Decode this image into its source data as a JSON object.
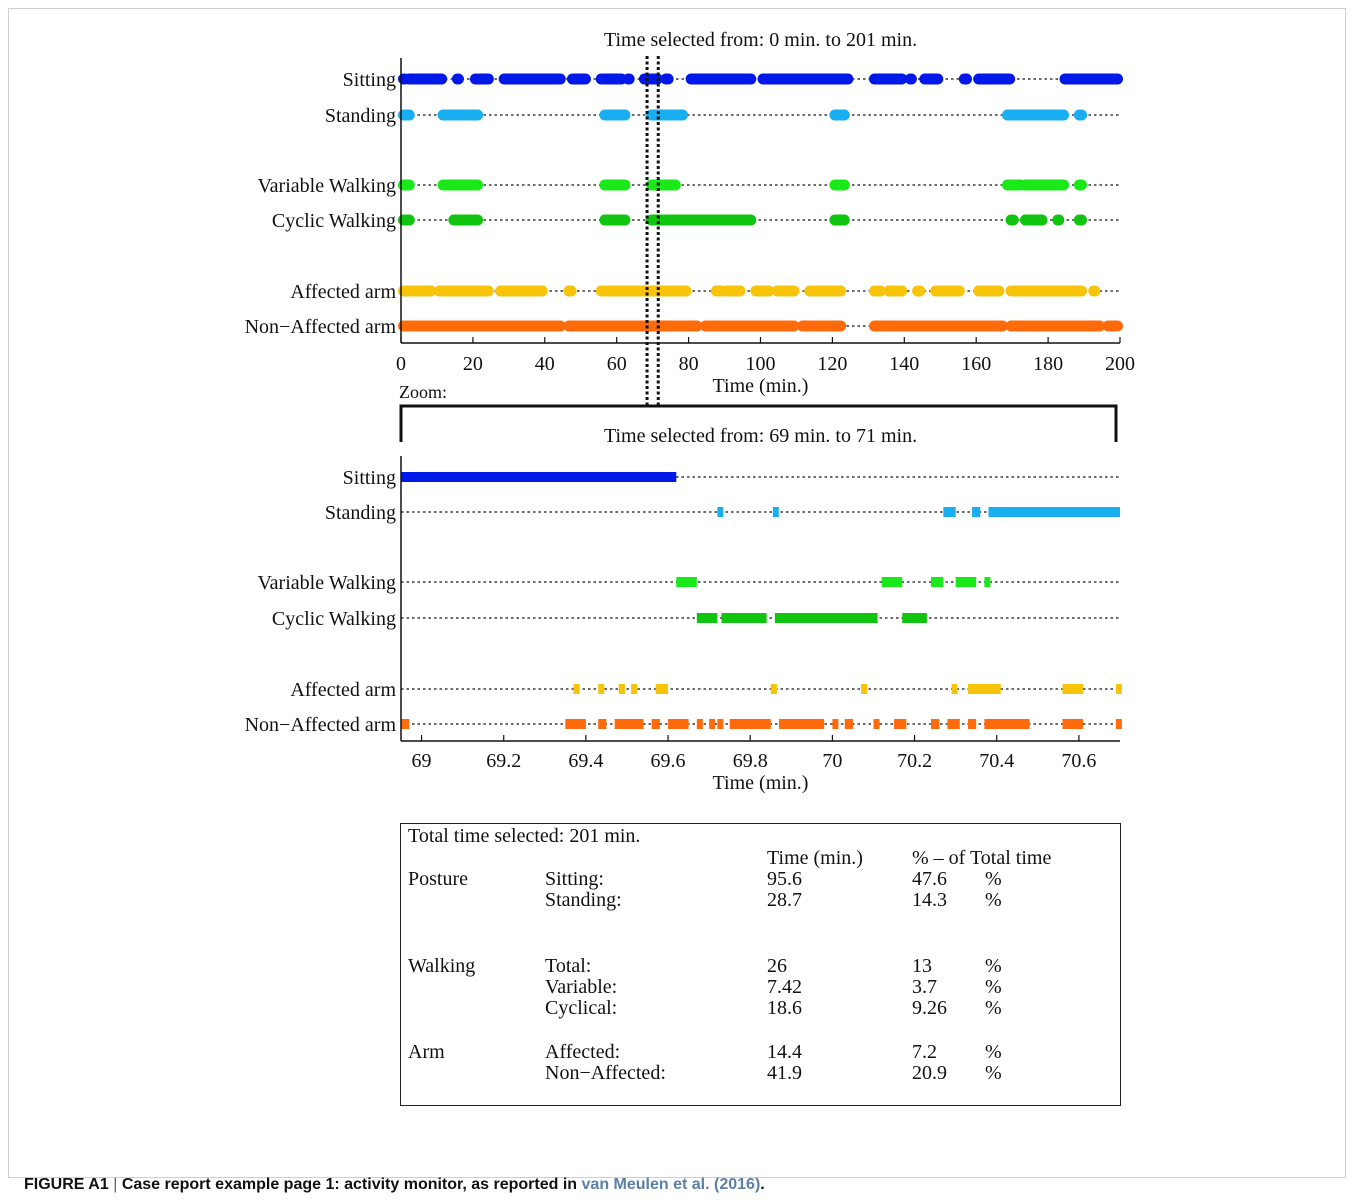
{
  "caption": {
    "label": "FIGURE A1",
    "separator": "|",
    "text": "Case report example page 1: activity monitor, as reported in",
    "reference": "van Meulen et al. (2016)",
    "end": "."
  },
  "zoom_label": "Zoom:",
  "colors": {
    "sitting": "#0018e8",
    "standing": "#19aef0",
    "variable_walking": "#19e819",
    "cyclic_walking": "#10c410",
    "affected_arm": "#f7c40a",
    "non_affected_arm": "#ff6a0a",
    "axis": "#111111"
  },
  "chart_data": [
    {
      "type": "scatter",
      "title": "Time selected from: 0 min. to 201 min.",
      "xlabel": "Time (min.)",
      "xlim": [
        0,
        200
      ],
      "xticks": [
        0,
        20,
        40,
        60,
        80,
        100,
        120,
        140,
        160,
        180,
        200
      ],
      "selection_markers": [
        69,
        71
      ],
      "series": [
        {
          "name": "Sitting",
          "color": "#0018e8",
          "segments": [
            [
              0,
              1
            ],
            [
              1.5,
              12
            ],
            [
              15,
              16
            ],
            [
              20,
              25
            ],
            [
              28,
              45
            ],
            [
              47,
              52
            ],
            [
              55,
              62
            ],
            [
              62.5,
              63
            ],
            [
              67,
              72
            ],
            [
              73,
              75
            ],
            [
              80,
              98
            ],
            [
              100,
              125
            ],
            [
              131,
              140
            ],
            [
              141,
              142
            ],
            [
              145,
              150
            ],
            [
              156,
              158
            ],
            [
              160,
              170
            ],
            [
              184,
              200
            ]
          ]
        },
        {
          "name": "Standing",
          "color": "#19aef0",
          "segments": [
            [
              0,
              3
            ],
            [
              11,
              22
            ],
            [
              56,
              63
            ],
            [
              69,
              79
            ],
            [
              120,
              124
            ],
            [
              168,
              185
            ],
            [
              188,
              190
            ]
          ]
        },
        {
          "name": "Variable Walking",
          "color": "#19e819",
          "segments": [
            [
              0,
              3
            ],
            [
              11,
              22
            ],
            [
              56,
              63
            ],
            [
              69,
              77
            ],
            [
              120,
              124
            ],
            [
              168,
              173
            ],
            [
              173,
              185
            ],
            [
              188,
              190
            ]
          ]
        },
        {
          "name": "Cyclic Walking",
          "color": "#10c410",
          "segments": [
            [
              0,
              3
            ],
            [
              14,
              22
            ],
            [
              56,
              63
            ],
            [
              69,
              98
            ],
            [
              120,
              124
            ],
            [
              169,
              171
            ],
            [
              173,
              179
            ],
            [
              182,
              183
            ],
            [
              188,
              190
            ]
          ]
        },
        {
          "name": "Affected arm",
          "color": "#f7c40a",
          "segments": [
            [
              0,
              9
            ],
            [
              10,
              25
            ],
            [
              27,
              40
            ],
            [
              46,
              48
            ],
            [
              55,
              80
            ],
            [
              87,
              90
            ],
            [
              90,
              95
            ],
            [
              98,
              103
            ],
            [
              104,
              110
            ],
            [
              113,
              123
            ],
            [
              131,
              134
            ],
            [
              135,
              140
            ],
            [
              143,
              145
            ],
            [
              148,
              156
            ],
            [
              160,
              167
            ],
            [
              169,
              190
            ],
            [
              192,
              193
            ]
          ]
        },
        {
          "name": "Non−Affected arm",
          "color": "#ff6a0a",
          "segments": [
            [
              0,
              45
            ],
            [
              46,
              83
            ],
            [
              84,
              110
            ],
            [
              111,
              123
            ],
            [
              131,
              168
            ],
            [
              169,
              195
            ],
            [
              196,
              200
            ]
          ]
        }
      ]
    },
    {
      "type": "scatter",
      "title": "Time selected from: 69 min. to 71 min.",
      "xlabel": "Time (min.)",
      "xlim": [
        68.95,
        70.7
      ],
      "xticks": [
        69,
        69.2,
        69.4,
        69.6,
        69.8,
        70,
        70.2,
        70.4,
        70.6
      ],
      "series": [
        {
          "name": "Sitting",
          "color": "#0018e8",
          "segments": [
            [
              68.95,
              69.62
            ]
          ]
        },
        {
          "name": "Standing",
          "color": "#19aef0",
          "segments": [
            [
              69.72,
              69.73
            ],
            [
              69.855,
              69.865
            ],
            [
              70.27,
              70.3
            ],
            [
              70.34,
              70.36
            ],
            [
              70.38,
              70.7
            ]
          ]
        },
        {
          "name": "Variable Walking",
          "color": "#19e819",
          "segments": [
            [
              69.62,
              69.67
            ],
            [
              70.12,
              70.17
            ],
            [
              70.24,
              70.27
            ],
            [
              70.3,
              70.35
            ],
            [
              70.37,
              70.38
            ]
          ]
        },
        {
          "name": "Cyclic Walking",
          "color": "#10c410",
          "segments": [
            [
              69.67,
              69.72
            ],
            [
              69.73,
              69.84
            ],
            [
              69.86,
              70.11
            ],
            [
              70.17,
              70.23
            ]
          ]
        },
        {
          "name": "Affected arm",
          "color": "#f7c40a",
          "segments": [
            [
              69.37,
              69.385
            ],
            [
              69.43,
              69.445
            ],
            [
              69.48,
              69.495
            ],
            [
              69.51,
              69.525
            ],
            [
              69.57,
              69.6
            ],
            [
              69.85,
              69.865
            ],
            [
              70.07,
              70.085
            ],
            [
              70.29,
              70.3
            ],
            [
              70.33,
              70.41
            ],
            [
              70.56,
              70.61
            ],
            [
              70.69,
              70.7
            ]
          ]
        },
        {
          "name": "Non−Affected arm",
          "color": "#ff6a0a",
          "segments": [
            [
              68.95,
              68.97
            ],
            [
              69.35,
              69.4
            ],
            [
              69.43,
              69.45
            ],
            [
              69.47,
              69.54
            ],
            [
              69.56,
              69.58
            ],
            [
              69.6,
              69.65
            ],
            [
              69.67,
              69.68
            ],
            [
              69.7,
              69.71
            ],
            [
              69.72,
              69.73
            ],
            [
              69.75,
              69.85
            ],
            [
              69.87,
              69.98
            ],
            [
              70.0,
              70.01
            ],
            [
              70.03,
              70.05
            ],
            [
              70.1,
              70.11
            ],
            [
              70.15,
              70.18
            ],
            [
              70.24,
              70.26
            ],
            [
              70.28,
              70.31
            ],
            [
              70.33,
              70.35
            ],
            [
              70.37,
              70.48
            ],
            [
              70.56,
              70.61
            ],
            [
              70.69,
              70.7
            ]
          ]
        }
      ]
    }
  ],
  "summary": {
    "total": "Total time selected: 201 min.",
    "col_time": "Time (min.)",
    "col_pct": "% – of Total time",
    "pct_unit": "%",
    "groups": [
      {
        "name": "Posture",
        "rows": [
          {
            "label": "Sitting:",
            "time": "95.6",
            "pct": "47.6"
          },
          {
            "label": "Standing:",
            "time": "28.7",
            "pct": "14.3"
          }
        ]
      },
      {
        "name": "Walking",
        "rows": [
          {
            "label": "Total:",
            "time": "26",
            "pct": "13"
          },
          {
            "label": "Variable:",
            "time": "7.42",
            "pct": "3.7"
          },
          {
            "label": "Cyclical:",
            "time": "18.6",
            "pct": "9.26"
          }
        ]
      },
      {
        "name": "Arm",
        "rows": [
          {
            "label": "Affected:",
            "time": "14.4",
            "pct": "7.2"
          },
          {
            "label": "Non−Affected:",
            "time": "41.9",
            "pct": "20.9"
          }
        ]
      }
    ]
  }
}
